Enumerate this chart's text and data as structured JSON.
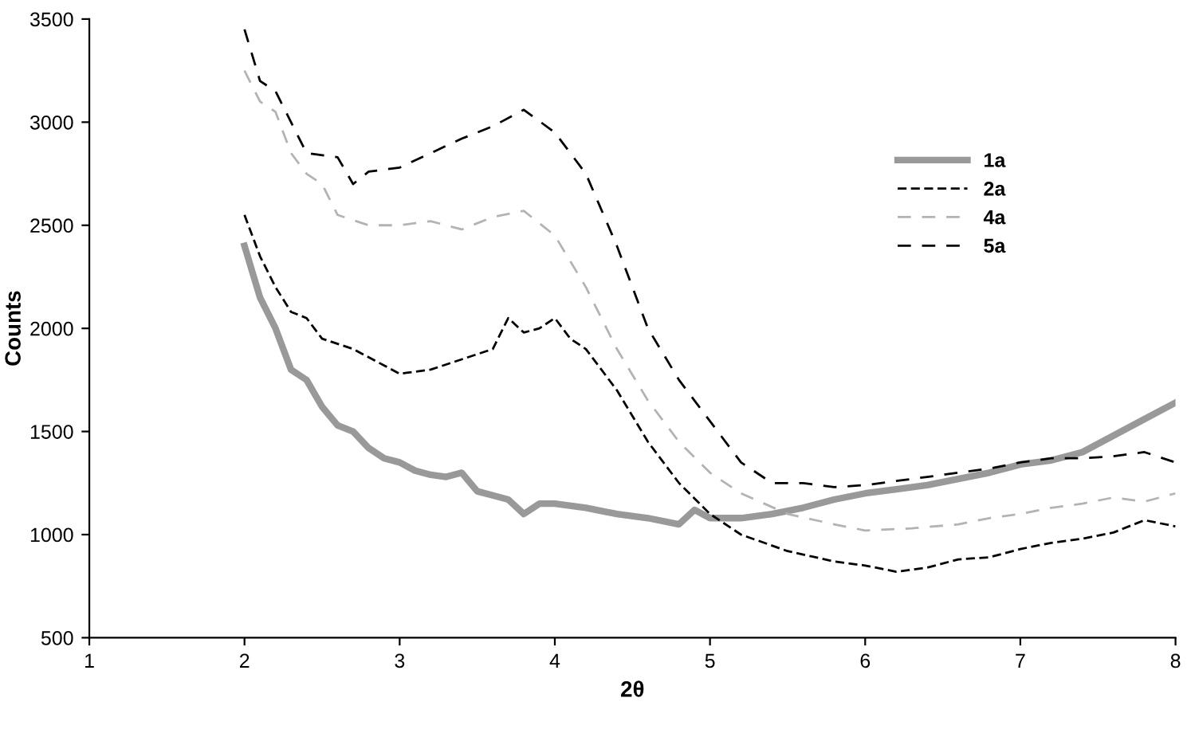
{
  "chart_data": {
    "type": "line",
    "xlabel": "2θ",
    "ylabel": "Counts",
    "xlim": [
      1,
      8
    ],
    "xticks": [
      1,
      2,
      3,
      4,
      5,
      6,
      7,
      8
    ],
    "ylim": [
      500,
      3500
    ],
    "yticks": [
      500,
      1000,
      1500,
      2000,
      2500,
      3000,
      3500
    ],
    "grid": false,
    "legend": "right",
    "marker": "none",
    "series": [
      {
        "name": "1a",
        "color": "#999999",
        "line_style": "solid",
        "x": [
          2,
          2.1,
          2.2,
          2.3,
          2.4,
          2.5,
          2.6,
          2.7,
          2.8,
          2.9,
          3.0,
          3.1,
          3.2,
          3.3,
          3.4,
          3.5,
          3.6,
          3.7,
          3.8,
          3.9,
          4.0,
          4.2,
          4.4,
          4.6,
          4.8,
          4.9,
          5.0,
          5.2,
          5.4,
          5.6,
          5.8,
          6.0,
          6.2,
          6.4,
          6.6,
          6.8,
          7.0,
          7.2,
          7.4,
          7.6,
          7.8,
          8.0
        ],
        "values": [
          2400,
          2150,
          2000,
          1800,
          1750,
          1620,
          1530,
          1500,
          1420,
          1370,
          1350,
          1310,
          1290,
          1280,
          1300,
          1210,
          1190,
          1170,
          1100,
          1150,
          1150,
          1130,
          1100,
          1080,
          1050,
          1120,
          1080,
          1080,
          1100,
          1130,
          1170,
          1200,
          1220,
          1240,
          1270,
          1300,
          1340,
          1360,
          1400,
          1480,
          1560,
          1640
        ]
      },
      {
        "name": "2a",
        "color": "#000000",
        "line_style": "dotted",
        "x": [
          2,
          2.1,
          2.2,
          2.3,
          2.4,
          2.5,
          2.7,
          2.9,
          3.0,
          3.2,
          3.4,
          3.6,
          3.7,
          3.8,
          3.9,
          4.0,
          4.1,
          4.2,
          4.4,
          4.6,
          4.8,
          5.0,
          5.2,
          5.5,
          5.8,
          6.0,
          6.2,
          6.4,
          6.6,
          6.8,
          7.0,
          7.2,
          7.4,
          7.6,
          7.8,
          8.0
        ],
        "values": [
          2550,
          2350,
          2200,
          2080,
          2050,
          1950,
          1900,
          1820,
          1780,
          1800,
          1850,
          1900,
          2050,
          1980,
          2000,
          2050,
          1950,
          1900,
          1700,
          1450,
          1250,
          1100,
          1000,
          920,
          870,
          850,
          820,
          840,
          880,
          890,
          930,
          960,
          980,
          1010,
          1070,
          1040
        ]
      },
      {
        "name": "4a",
        "color": "#b3b3b3",
        "line_style": "dashed",
        "x": [
          2,
          2.1,
          2.2,
          2.3,
          2.4,
          2.5,
          2.6,
          2.8,
          3.0,
          3.2,
          3.4,
          3.6,
          3.8,
          4.0,
          4.2,
          4.4,
          4.6,
          4.8,
          5.0,
          5.2,
          5.5,
          5.8,
          6.0,
          6.3,
          6.6,
          6.8,
          7.0,
          7.2,
          7.4,
          7.6,
          7.8,
          8.0
        ],
        "values": [
          3250,
          3100,
          3050,
          2850,
          2750,
          2700,
          2550,
          2500,
          2500,
          2520,
          2480,
          2540,
          2570,
          2450,
          2200,
          1900,
          1650,
          1450,
          1300,
          1200,
          1100,
          1050,
          1020,
          1030,
          1050,
          1080,
          1100,
          1130,
          1150,
          1180,
          1160,
          1200
        ]
      },
      {
        "name": "5a",
        "color": "#000000",
        "line_style": "dashed",
        "x": [
          2,
          2.1,
          2.2,
          2.3,
          2.4,
          2.6,
          2.7,
          2.8,
          3.0,
          3.2,
          3.4,
          3.6,
          3.8,
          4.0,
          4.2,
          4.4,
          4.6,
          4.8,
          5.0,
          5.2,
          5.4,
          5.6,
          5.8,
          6.0,
          6.2,
          6.4,
          6.6,
          6.8,
          7.0,
          7.2,
          7.4,
          7.6,
          7.8,
          8.0
        ],
        "values": [
          3450,
          3200,
          3150,
          3000,
          2850,
          2830,
          2700,
          2760,
          2780,
          2850,
          2920,
          2980,
          3060,
          2950,
          2750,
          2400,
          2000,
          1750,
          1550,
          1350,
          1250,
          1250,
          1230,
          1240,
          1260,
          1280,
          1300,
          1320,
          1350,
          1370,
          1370,
          1380,
          1400,
          1350
        ]
      }
    ]
  }
}
